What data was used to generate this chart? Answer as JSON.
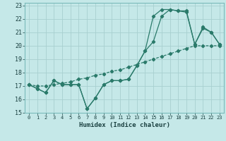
{
  "title": "",
  "xlabel": "Humidex (Indice chaleur)",
  "bg_color": "#c5e8e8",
  "grid_color": "#a8d0d0",
  "line_color": "#2a7a6a",
  "xlim": [
    -0.5,
    23.5
  ],
  "ylim": [
    15,
    23.2
  ],
  "xticks": [
    0,
    1,
    2,
    3,
    4,
    5,
    6,
    7,
    8,
    9,
    10,
    11,
    12,
    13,
    14,
    15,
    16,
    17,
    18,
    19,
    20,
    21,
    22,
    23
  ],
  "yticks": [
    15,
    16,
    17,
    18,
    19,
    20,
    21,
    22,
    23
  ],
  "line1_x": [
    0,
    1,
    2,
    3,
    4,
    5,
    6,
    7,
    8,
    9,
    10,
    11,
    12,
    13,
    14,
    15,
    16,
    17,
    18,
    19,
    20,
    21,
    22,
    23
  ],
  "line1_y": [
    17.1,
    16.8,
    16.5,
    17.4,
    17.1,
    17.1,
    17.1,
    15.3,
    16.1,
    17.1,
    17.4,
    17.4,
    17.5,
    18.5,
    19.6,
    20.3,
    22.2,
    22.7,
    22.6,
    22.6,
    20.1,
    21.3,
    21.0,
    20.1
  ],
  "line2_x": [
    0,
    1,
    2,
    3,
    4,
    5,
    6,
    7,
    8,
    9,
    10,
    11,
    12,
    13,
    14,
    15,
    16,
    17,
    18,
    19,
    20,
    21,
    22,
    23
  ],
  "line2_y": [
    17.1,
    16.8,
    16.5,
    17.4,
    17.1,
    17.1,
    17.1,
    15.3,
    16.1,
    17.1,
    17.4,
    17.4,
    17.5,
    18.5,
    19.6,
    22.2,
    22.7,
    22.7,
    22.6,
    22.5,
    20.1,
    21.4,
    21.0,
    20.1
  ],
  "line3_x": [
    0,
    1,
    2,
    3,
    4,
    5,
    6,
    7,
    8,
    9,
    10,
    11,
    12,
    13,
    14,
    15,
    16,
    17,
    18,
    19,
    20,
    21,
    22,
    23
  ],
  "line3_y": [
    17.1,
    17.0,
    17.0,
    17.1,
    17.2,
    17.3,
    17.5,
    17.6,
    17.8,
    17.9,
    18.1,
    18.2,
    18.4,
    18.6,
    18.8,
    19.0,
    19.2,
    19.4,
    19.6,
    19.8,
    20.0,
    20.0,
    20.0,
    20.0
  ]
}
